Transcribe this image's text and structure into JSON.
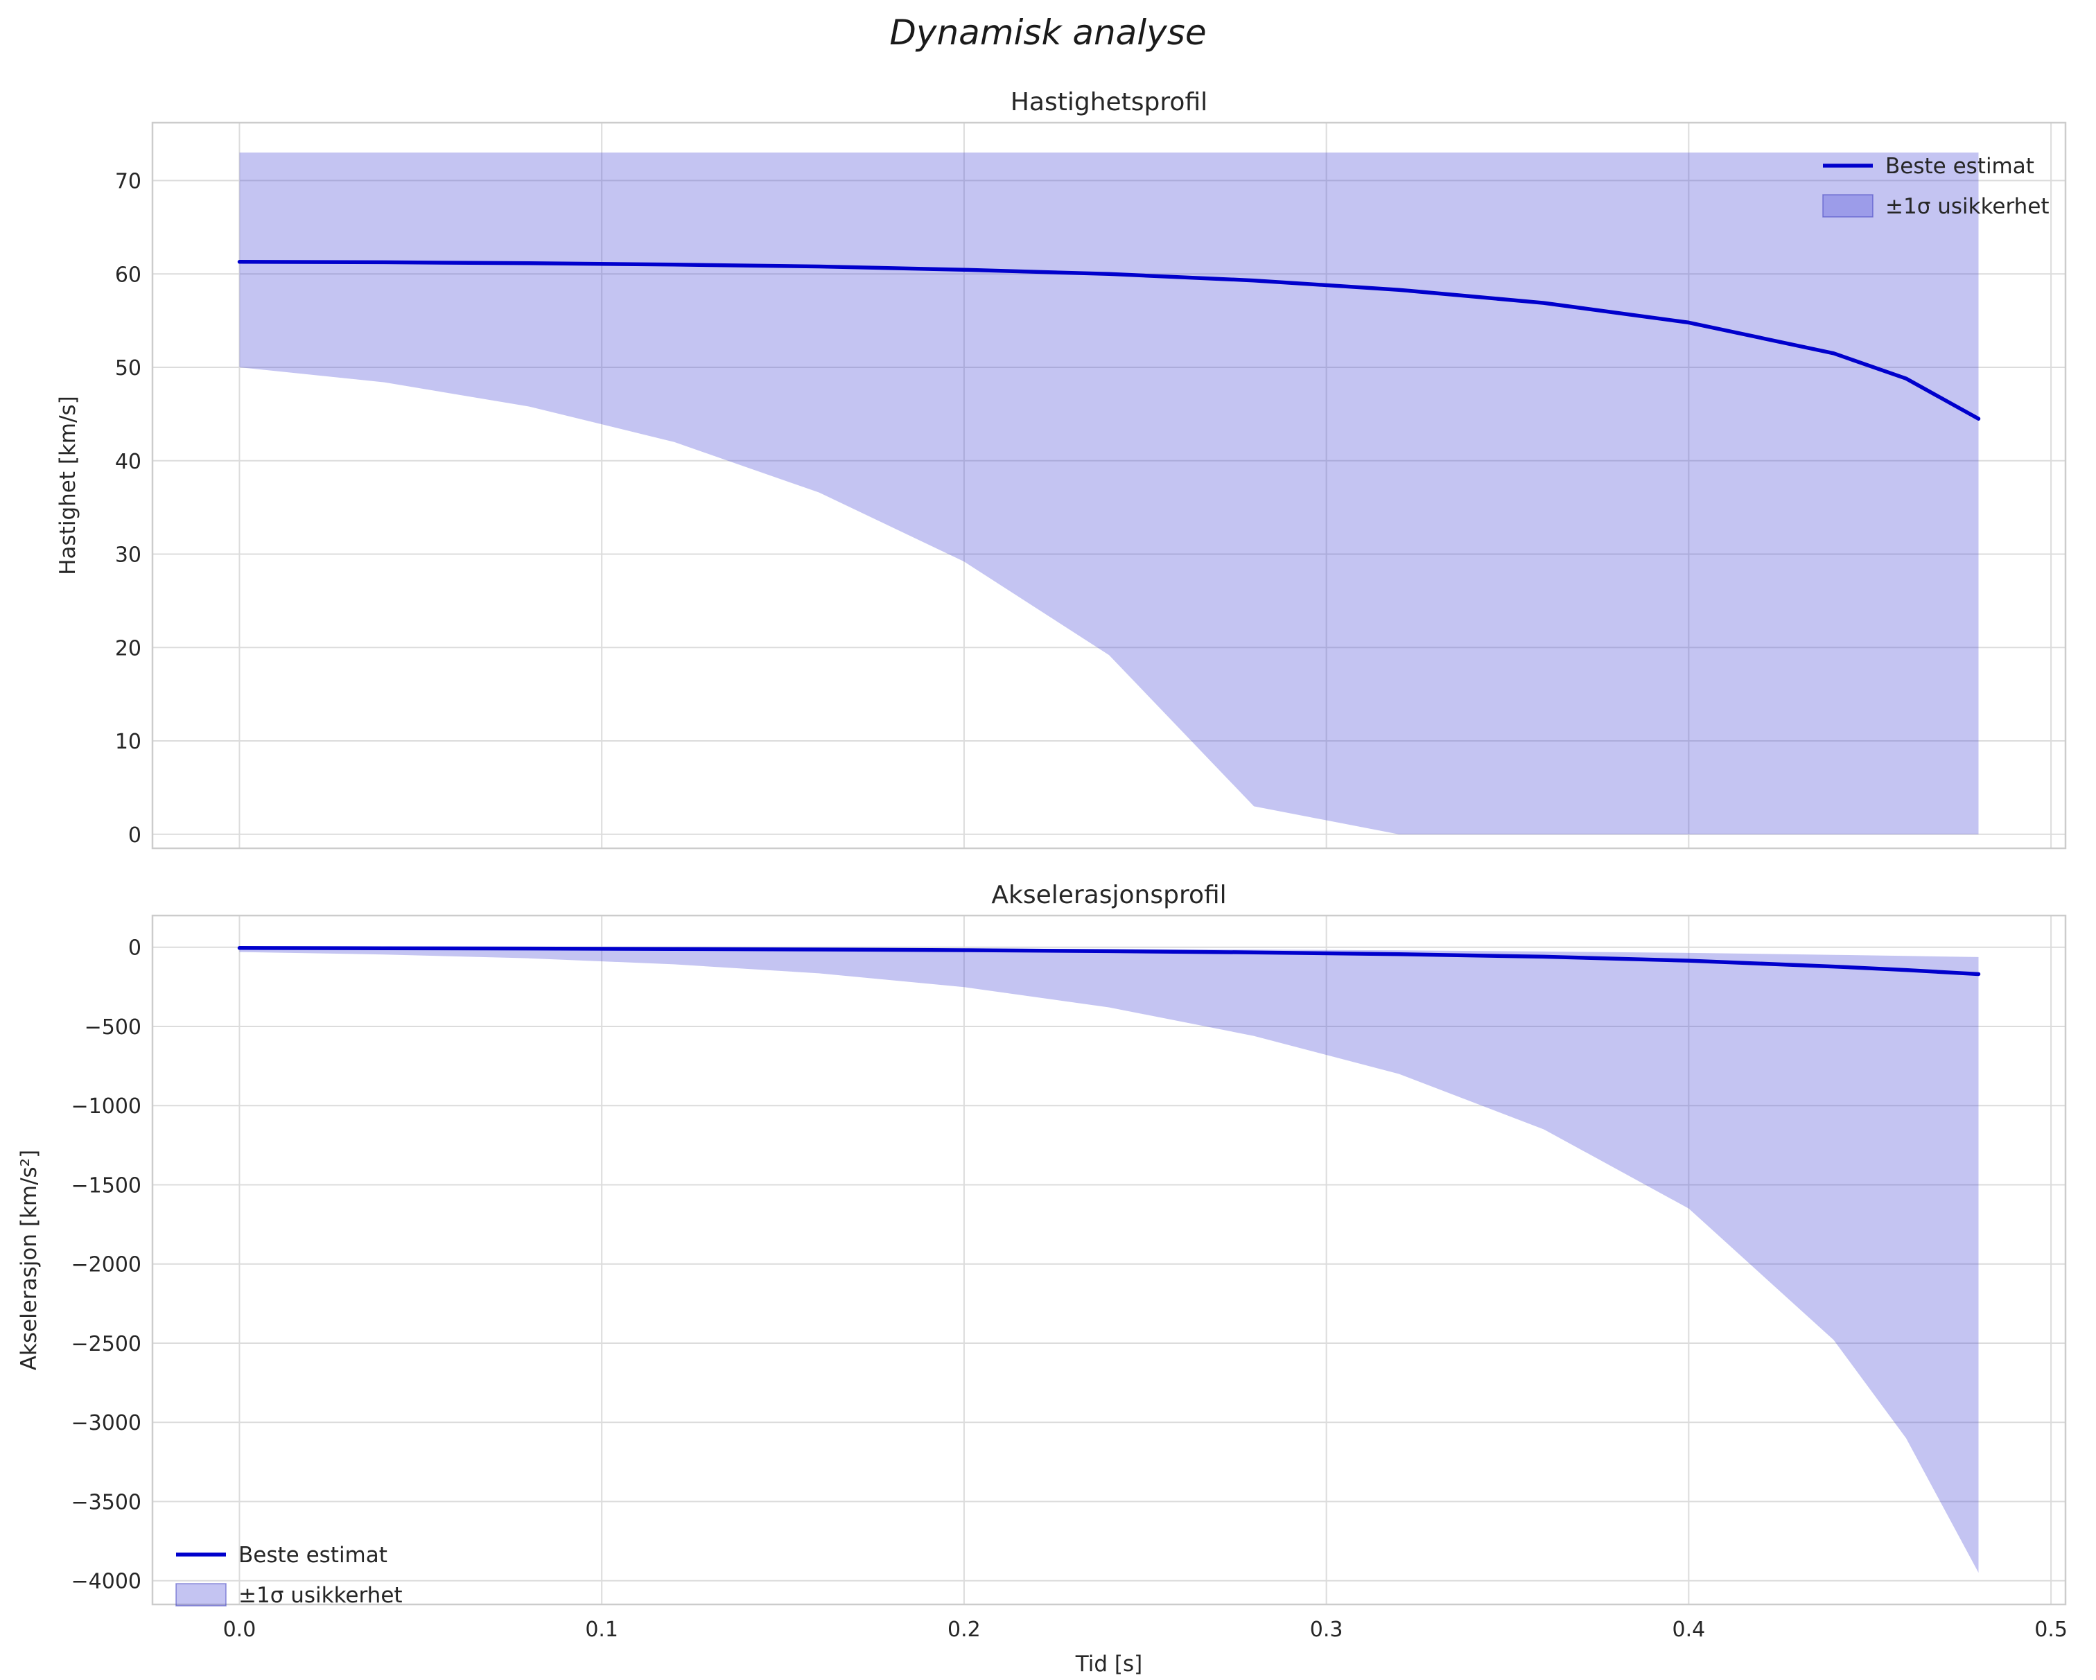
{
  "figure": {
    "suptitle": "Dynamisk analyse"
  },
  "style": {
    "line_color": "#0000cc",
    "band_color": "rgba(72,72,216,0.32)",
    "band_edge": "rgba(60,60,190,0.55)",
    "grid_color": "#dcdcdc",
    "border_color": "#cccccc",
    "text_color": "#262626"
  },
  "chart_data": [
    {
      "type": "area",
      "title": "Hastighetsprofil",
      "ylabel": "Hastighet [km/s]",
      "xlabel": "",
      "xlim": [
        -0.024,
        0.504
      ],
      "ylim": [
        -1.5,
        76.2
      ],
      "xticks": [
        0,
        0.1,
        0.2,
        0.3,
        0.4,
        0.5
      ],
      "xtick_labels": [
        "0.0",
        "0.1",
        "0.2",
        "0.3",
        "0.4",
        "0.5"
      ],
      "yticks": [
        0,
        10,
        20,
        30,
        40,
        50,
        60,
        70
      ],
      "ytick_labels": [
        "0",
        "10",
        "20",
        "30",
        "40",
        "50",
        "60",
        "70"
      ],
      "grid": true,
      "x": [
        0,
        0.04,
        0.08,
        0.12,
        0.16,
        0.2,
        0.24,
        0.28,
        0.32,
        0.36,
        0.4,
        0.44,
        0.46,
        0.48
      ],
      "series": [
        {
          "name": "Beste estimat",
          "values": [
            61.3,
            61.25,
            61.15,
            61.0,
            60.8,
            60.45,
            60.0,
            59.3,
            58.3,
            56.9,
            54.8,
            51.5,
            48.8,
            44.5
          ]
        }
      ],
      "band": {
        "name": "±1σ usikkerhet",
        "upper": [
          73,
          73,
          73,
          73,
          73,
          73,
          73,
          73,
          73,
          73,
          73,
          73,
          73,
          73
        ],
        "lower": [
          50,
          48.4,
          45.8,
          42.0,
          36.6,
          29.2,
          19.2,
          3.0,
          0,
          0,
          0,
          0,
          0,
          0
        ]
      },
      "legend": {
        "position": "upper-right",
        "entries": [
          "Beste estimat",
          "±1σ usikkerhet"
        ]
      }
    },
    {
      "type": "area",
      "title": "Akselerasjonsprofil",
      "ylabel": "Akselerasjon [km/s²]",
      "xlabel": "Tid [s]",
      "xlim": [
        -0.024,
        0.504
      ],
      "ylim": [
        -4150,
        200
      ],
      "xticks": [
        0,
        0.1,
        0.2,
        0.3,
        0.4,
        0.5
      ],
      "xtick_labels": [
        "0.0",
        "0.1",
        "0.2",
        "0.3",
        "0.4",
        "0.5"
      ],
      "yticks": [
        0,
        -500,
        -1000,
        -1500,
        -2000,
        -2500,
        -3000,
        -3500,
        -4000
      ],
      "ytick_labels": [
        "0",
        "−500",
        "−1000",
        "−1500",
        "−2000",
        "−2500",
        "−3000",
        "−3500",
        "−4000"
      ],
      "grid": true,
      "x": [
        0,
        0.04,
        0.08,
        0.12,
        0.16,
        0.2,
        0.24,
        0.28,
        0.32,
        0.36,
        0.4,
        0.44,
        0.46,
        0.48
      ],
      "series": [
        {
          "name": "Beste estimat",
          "values": [
            -5,
            -6.5,
            -8.5,
            -11,
            -14.5,
            -19,
            -25,
            -33,
            -44,
            -60,
            -85,
            -122,
            -144,
            -170
          ]
        }
      ],
      "band": {
        "name": "±1σ usikkerhet",
        "upper": [
          -1,
          -1.5,
          -2.5,
          -4,
          -5.5,
          -8,
          -11,
          -15,
          -20,
          -27,
          -36,
          -48,
          -55,
          -62
        ],
        "lower": [
          -30,
          -46,
          -70,
          -108,
          -165,
          -252,
          -380,
          -560,
          -800,
          -1150,
          -1650,
          -2480,
          -3100,
          -3950
        ]
      },
      "legend": {
        "position": "lower-left",
        "entries": [
          "Beste estimat",
          "±1σ usikkerhet"
        ]
      }
    }
  ]
}
